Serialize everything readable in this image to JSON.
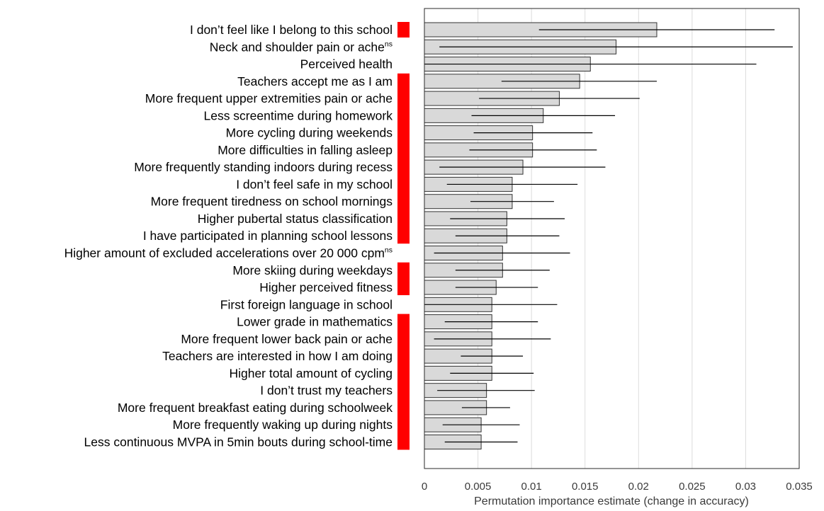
{
  "chart_data": {
    "type": "bar",
    "orientation": "horizontal",
    "xlabel": "Permutation importance estimate (change in accuracy)",
    "xlim": [
      0,
      0.035
    ],
    "xticks": [
      "0",
      "0.005",
      "0.01",
      "0.015",
      "0.02",
      "0.025",
      "0.03",
      "0.035"
    ],
    "grid": true,
    "marker_color": "#ff0000",
    "bar_color": "#d9d9d9",
    "categories": [
      {
        "label": "I don’t feel like I belong to this school",
        "sup": "",
        "value": 0.0217,
        "err_low": 0.0107,
        "err_high": 0.0327,
        "marker": true
      },
      {
        "label": "Neck and shoulder pain or ache",
        "sup": "ns",
        "value": 0.0179,
        "err_low": 0.0014,
        "err_high": 0.0344,
        "marker": false
      },
      {
        "label": "Perceived health",
        "sup": "",
        "value": 0.0155,
        "err_low": 0.0,
        "err_high": 0.031,
        "marker": false
      },
      {
        "label": "Teachers accept me as I am",
        "sup": "",
        "value": 0.0145,
        "err_low": 0.0072,
        "err_high": 0.0217,
        "marker": true
      },
      {
        "label": "More frequent upper extremities pain or ache",
        "sup": "",
        "value": 0.0126,
        "err_low": 0.0051,
        "err_high": 0.0201,
        "marker": true
      },
      {
        "label": "Less screentime during homework",
        "sup": "",
        "value": 0.0111,
        "err_low": 0.0044,
        "err_high": 0.0178,
        "marker": true
      },
      {
        "label": "More cycling during weekends",
        "sup": "",
        "value": 0.0101,
        "err_low": 0.0046,
        "err_high": 0.0157,
        "marker": true
      },
      {
        "label": "More difficulties in falling asleep",
        "sup": "",
        "value": 0.0101,
        "err_low": 0.0042,
        "err_high": 0.0161,
        "marker": true
      },
      {
        "label": "More frequently standing indoors during recess",
        "sup": "",
        "value": 0.0092,
        "err_low": 0.0014,
        "err_high": 0.0169,
        "marker": true
      },
      {
        "label": "I don’t feel safe in my school",
        "sup": "",
        "value": 0.0082,
        "err_low": 0.0021,
        "err_high": 0.0143,
        "marker": true
      },
      {
        "label": "More frequent tiredness on school mornings",
        "sup": "",
        "value": 0.0082,
        "err_low": 0.0043,
        "err_high": 0.0121,
        "marker": true
      },
      {
        "label": "Higher pubertal status classification",
        "sup": "",
        "value": 0.0077,
        "err_low": 0.0024,
        "err_high": 0.0131,
        "marker": true
      },
      {
        "label": "I have participated in planning school lessons",
        "sup": "",
        "value": 0.0077,
        "err_low": 0.0029,
        "err_high": 0.0126,
        "marker": true
      },
      {
        "label": "Higher amount of excluded accelerations over 20 000 cpm",
        "sup": "ns",
        "value": 0.0073,
        "err_low": 0.0009,
        "err_high": 0.0136,
        "marker": false
      },
      {
        "label": "More skiing during weekdays",
        "sup": "",
        "value": 0.0073,
        "err_low": 0.0029,
        "err_high": 0.0117,
        "marker": true
      },
      {
        "label": "Higher perceived fitness",
        "sup": "",
        "value": 0.0067,
        "err_low": 0.0029,
        "err_high": 0.0106,
        "marker": true
      },
      {
        "label": "First foreign language in school",
        "sup": "",
        "value": 0.0063,
        "err_low": 0.0,
        "err_high": 0.0124,
        "marker": false
      },
      {
        "label": "Lower grade in mathematics",
        "sup": "",
        "value": 0.0063,
        "err_low": 0.0019,
        "err_high": 0.0106,
        "marker": true
      },
      {
        "label": "More frequent lower back pain or ache",
        "sup": "",
        "value": 0.0063,
        "err_low": 0.0009,
        "err_high": 0.0118,
        "marker": true
      },
      {
        "label": "Teachers are interested in how I am doing",
        "sup": "",
        "value": 0.0063,
        "err_low": 0.0034,
        "err_high": 0.0092,
        "marker": true
      },
      {
        "label": "Higher total amount of cycling",
        "sup": "",
        "value": 0.0063,
        "err_low": 0.0024,
        "err_high": 0.0102,
        "marker": true
      },
      {
        "label": "I don’t trust my teachers",
        "sup": "",
        "value": 0.0058,
        "err_low": 0.0012,
        "err_high": 0.0103,
        "marker": true
      },
      {
        "label": "More frequent breakfast eating during schoolweek",
        "sup": "",
        "value": 0.0058,
        "err_low": 0.0035,
        "err_high": 0.008,
        "marker": true
      },
      {
        "label": "More frequently waking up during nights",
        "sup": "",
        "value": 0.0053,
        "err_low": 0.0017,
        "err_high": 0.0089,
        "marker": true
      },
      {
        "label": "Less continuous MVPA in 5min bouts during school-time",
        "sup": "",
        "value": 0.0053,
        "err_low": 0.0019,
        "err_high": 0.0087,
        "marker": true
      }
    ]
  }
}
